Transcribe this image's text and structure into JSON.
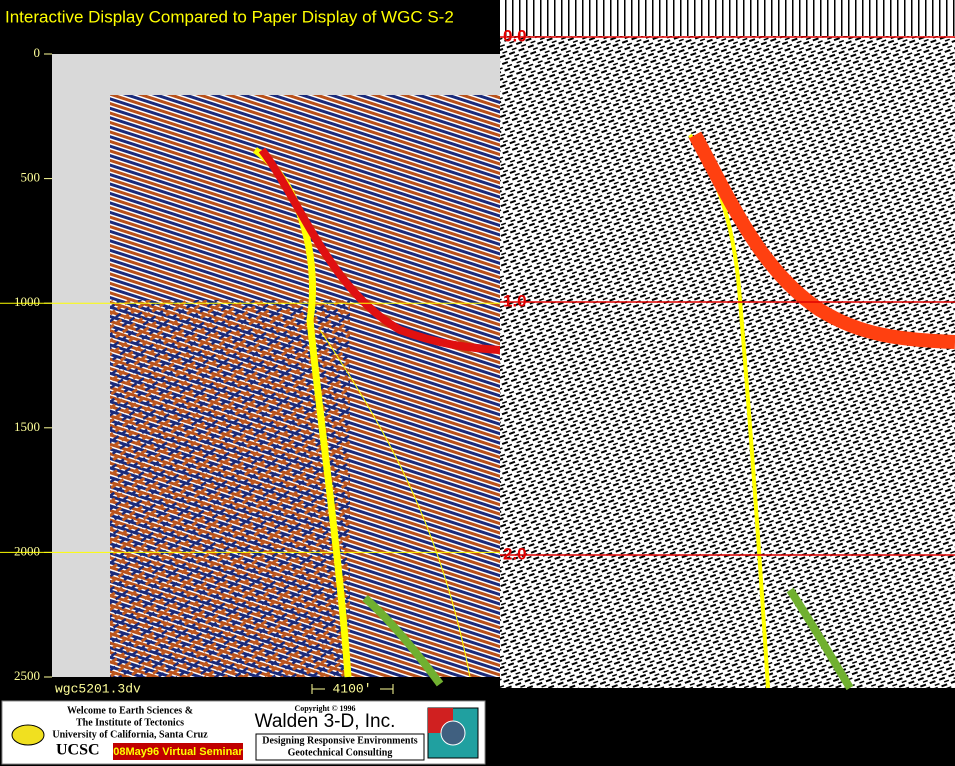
{
  "title": "Interactive Display Compared to Paper Display of WGC S-2",
  "left_panel": {
    "yticks": [
      0,
      500,
      1000,
      1500,
      2000,
      2500
    ],
    "ylim": [
      0,
      2500
    ],
    "grid_ticks": [
      1000,
      2000
    ],
    "file_label": "wgc5201.3dv",
    "scale_label": "4100'"
  },
  "right_panel": {
    "time_labels": [
      "0.0",
      "1.0",
      "2.0"
    ]
  },
  "banner": {
    "welcome": [
      "Welcome to Earth Sciences &",
      "The Institute of Tectonics",
      "University of California, Santa Cruz"
    ],
    "ucsc": "UCSC",
    "seminar": "08May96 Virtual Seminar",
    "copyright": "Copyright © 1996",
    "company": "Walden 3-D, Inc.",
    "tagline": "Designing Responsive Environments",
    "consulting": "Geotechnical Consulting"
  }
}
